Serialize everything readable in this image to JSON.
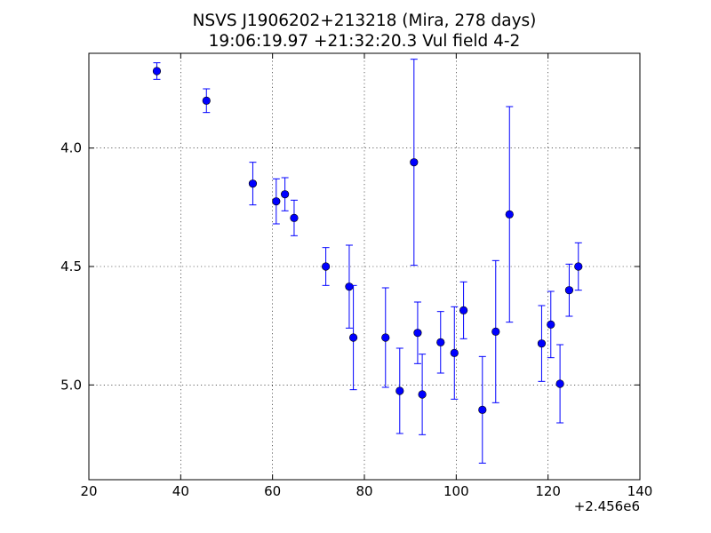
{
  "chart_data": {
    "type": "scatter",
    "title": "NSVS J1906202+213218 (Mira, 278 days)",
    "subtitle": "19:06:19.97 +21:32:20.3 Vul field 4-2",
    "xlabel": "",
    "ylabel": "",
    "x_offset_label": "+2.456e6",
    "xlim": [
      20,
      140
    ],
    "ylim": [
      5.4,
      3.6
    ],
    "y_inverted": true,
    "grid": true,
    "marker_color": "#0000ff",
    "x_ticks": [
      20,
      40,
      60,
      80,
      100,
      120,
      140
    ],
    "y_ticks": [
      4.0,
      4.5,
      5.0
    ],
    "y_tick_labels": [
      "4.0",
      "4.5",
      "5.0"
    ],
    "points": [
      {
        "x": 34.8,
        "y": 3.675,
        "err": 0.035
      },
      {
        "x": 45.6,
        "y": 3.8,
        "err": 0.05
      },
      {
        "x": 55.7,
        "y": 4.15,
        "err": 0.09
      },
      {
        "x": 60.8,
        "y": 4.225,
        "err": 0.095
      },
      {
        "x": 62.7,
        "y": 4.195,
        "err": 0.07
      },
      {
        "x": 64.7,
        "y": 4.295,
        "err": 0.075
      },
      {
        "x": 71.6,
        "y": 4.5,
        "err": 0.08
      },
      {
        "x": 76.7,
        "y": 4.585,
        "err": 0.175
      },
      {
        "x": 77.6,
        "y": 4.8,
        "err": 0.22
      },
      {
        "x": 84.6,
        "y": 4.8,
        "err": 0.21
      },
      {
        "x": 87.7,
        "y": 5.025,
        "err": 0.18
      },
      {
        "x": 90.8,
        "y": 4.06,
        "err": 0.435
      },
      {
        "x": 91.6,
        "y": 4.78,
        "err": 0.13
      },
      {
        "x": 92.6,
        "y": 5.04,
        "err": 0.17
      },
      {
        "x": 96.6,
        "y": 4.82,
        "err": 0.13
      },
      {
        "x": 99.6,
        "y": 4.865,
        "err": 0.195
      },
      {
        "x": 101.6,
        "y": 4.685,
        "err": 0.12
      },
      {
        "x": 105.7,
        "y": 5.105,
        "err": 0.225
      },
      {
        "x": 108.6,
        "y": 4.775,
        "err": 0.3
      },
      {
        "x": 111.6,
        "y": 4.28,
        "err": 0.455
      },
      {
        "x": 118.6,
        "y": 4.825,
        "err": 0.16
      },
      {
        "x": 120.6,
        "y": 4.745,
        "err": 0.14
      },
      {
        "x": 122.6,
        "y": 4.995,
        "err": 0.165
      },
      {
        "x": 124.6,
        "y": 4.6,
        "err": 0.11
      },
      {
        "x": 126.6,
        "y": 4.5,
        "err": 0.1
      }
    ]
  }
}
